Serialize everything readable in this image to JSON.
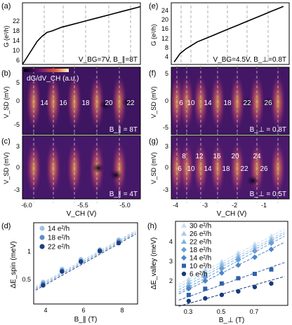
{
  "panels": {
    "a": {
      "letter": "(a)",
      "ylabel": "G (e²/h)",
      "yticks": [
        "22",
        "18",
        "14",
        "10",
        "6"
      ],
      "annotation": "V_BG=7V, B_∥=8T"
    },
    "b": {
      "letter": "(b)",
      "ylabel": "V_SD (mV)",
      "yticks": [
        "5",
        "0",
        "-5"
      ],
      "colorbar_label": "dG/dV_CH (a.u.)",
      "field": "B_∥ = 8T",
      "numbers": [
        "14",
        "16",
        "18",
        "20",
        "22"
      ]
    },
    "c": {
      "letter": "(c)",
      "ylabel": "V_SD (mV)",
      "yticks": [
        "3",
        "0",
        "-3"
      ],
      "field": "B_∥ = 4T",
      "xlabel": "V_CH (V)",
      "xticks": [
        "-6.0",
        "-5.5",
        "-5.0"
      ]
    },
    "e": {
      "letter": "(e)",
      "ylabel": "G (e²/h)",
      "yticks": [
        "24",
        "20",
        "16",
        "12",
        "8",
        "4"
      ],
      "annotation": "V_BG=4.5V, B_⊥=0.8T"
    },
    "f": {
      "letter": "(f)",
      "ylabel": "V_SD (mV)",
      "yticks": [
        "5",
        "0",
        "-5"
      ],
      "field": "B_⊥ = 0.8T",
      "numbers": [
        "6",
        "10",
        "14",
        "18",
        "22",
        "26"
      ]
    },
    "g": {
      "letter": "(g)",
      "ylabel": "V_SD (mV)",
      "yticks": [
        "3",
        "0",
        "-3"
      ],
      "field": "B_⊥ = 0.5T",
      "numbers_top": [
        "8",
        "12",
        "16",
        "20",
        "24"
      ],
      "numbers_bottom": [
        "6",
        "10",
        "14",
        "18",
        "22",
        "26"
      ],
      "xlabel": "V_CH (V)",
      "xticks": [
        "-4",
        "-3",
        "-2",
        "-1"
      ]
    },
    "d": {
      "letter": "(d)",
      "ylabel": "ΔE_spin (meV)",
      "xlabel": "B_∥ (T)",
      "yticks": [
        "1",
        "0.5"
      ],
      "xticks": [
        "4",
        "6",
        "8"
      ],
      "legend": [
        "14 e²/h",
        "18 e²/h",
        "22 e²/h"
      ]
    },
    "h": {
      "letter": "(h)",
      "ylabel": "ΔE_valley (meV)",
      "xlabel": "B_⊥ (T)",
      "yticks": [
        "4",
        "3",
        "2"
      ],
      "xticks": [
        "0.3",
        "0.5",
        "0.7"
      ],
      "legend": [
        "30 e²/h",
        "26 e²/h",
        "22 e²/h",
        "18 e²/h",
        "14 e²/h",
        "10 e²/h",
        "6 e²/h"
      ]
    }
  },
  "chart_data": [
    {
      "type": "scatter",
      "panel": "d",
      "xlabel": "B_∥ (T)",
      "ylabel": "ΔE_spin (meV)",
      "xlim": [
        3.5,
        9
      ],
      "ylim": [
        0.3,
        1.3
      ],
      "series": [
        {
          "name": "14 e²/h",
          "color": "#9ec3e6",
          "x": [
            4,
            5,
            6,
            7,
            8
          ],
          "y": [
            0.57,
            0.73,
            0.85,
            0.97,
            1.09
          ]
        },
        {
          "name": "18 e²/h",
          "color": "#5b8ec9",
          "x": [
            4,
            5,
            6,
            7,
            8
          ],
          "y": [
            0.55,
            0.71,
            0.83,
            0.96,
            1.07
          ]
        },
        {
          "name": "22 e²/h",
          "color": "#1c3f82",
          "x": [
            4,
            5,
            6,
            7,
            8
          ],
          "y": [
            0.53,
            0.7,
            0.82,
            0.95,
            1.05
          ]
        }
      ]
    },
    {
      "type": "scatter",
      "panel": "h",
      "xlabel": "B_⊥ (T)",
      "ylabel": "ΔE_valley (meV)",
      "xlim": [
        0.22,
        0.9
      ],
      "ylim": [
        0.8,
        5.6
      ],
      "series": [
        {
          "name": "30 e²/h",
          "color": "#c9def2",
          "marker": "triangle",
          "x": [
            0.3,
            0.4,
            0.5,
            0.6,
            0.7,
            0.8
          ],
          "y": [
            2.3,
            2.85,
            3.3,
            3.8,
            4.3,
            4.75
          ]
        },
        {
          "name": "26 e²/h",
          "color": "#a6c8ea",
          "marker": "triangle",
          "x": [
            0.3,
            0.4,
            0.5,
            0.6,
            0.7,
            0.8
          ],
          "y": [
            2.15,
            2.7,
            3.2,
            3.65,
            4.15,
            4.6
          ]
        },
        {
          "name": "22 e²/h",
          "color": "#84b3e0",
          "marker": "triangle",
          "x": [
            0.3,
            0.4,
            0.5,
            0.6,
            0.7,
            0.8
          ],
          "y": [
            2.0,
            2.55,
            3.05,
            3.55,
            4.0,
            4.5
          ]
        },
        {
          "name": "18 e²/h",
          "color": "#6b9fd6",
          "marker": "diamond",
          "x": [
            0.3,
            0.4,
            0.5,
            0.6,
            0.7,
            0.8
          ],
          "y": [
            1.85,
            2.4,
            2.9,
            3.4,
            3.9,
            4.35
          ]
        },
        {
          "name": "14 e²/h",
          "color": "#4f86c6",
          "marker": "diamond",
          "x": [
            0.3,
            0.4,
            0.5,
            0.6,
            0.7,
            0.8
          ],
          "y": [
            1.75,
            2.2,
            2.65,
            3.1,
            3.55,
            4.0
          ]
        },
        {
          "name": "10 e²/h",
          "color": "#2f62a8",
          "marker": "square",
          "x": [
            0.3,
            0.4,
            0.5,
            0.6,
            0.7,
            0.8
          ],
          "y": [
            1.4,
            1.75,
            2.05,
            2.35,
            2.6,
            2.85
          ]
        },
        {
          "name": "6 e²/h",
          "color": "#173a7a",
          "marker": "circle",
          "x": [
            0.3,
            0.4,
            0.5,
            0.6,
            0.7,
            0.8
          ],
          "y": [
            1.05,
            1.2,
            1.4,
            1.6,
            1.85,
            2.05
          ]
        }
      ]
    },
    {
      "type": "line",
      "panel": "a",
      "xlabel": "V_CH (V)",
      "ylabel": "G (e²/h)",
      "xlim": [
        -6.0,
        -4.8
      ],
      "ylim": [
        2,
        26
      ],
      "x": [
        -6.0,
        -5.95,
        -5.9,
        -5.85,
        -5.8,
        -5.75,
        -5.7,
        -5.6,
        -5.5,
        -5.4,
        -5.3,
        -5.2,
        -5.1,
        -5.0,
        -4.9,
        -4.8
      ],
      "y": [
        2,
        5,
        8,
        11,
        13,
        14.5,
        15,
        16.5,
        17.5,
        18.5,
        19.5,
        20.5,
        21.5,
        22.5,
        23.5,
        24.5
      ]
    },
    {
      "type": "line",
      "panel": "e",
      "xlabel": "V_CH (V)",
      "ylabel": "G (e²/h)",
      "xlim": [
        -4.1,
        0
      ],
      "ylim": [
        2,
        28
      ],
      "x": [
        -4.0,
        -3.8,
        -3.6,
        -3.4,
        -3.2,
        -3.0,
        -2.8,
        -2.6,
        -2.4,
        -2.2,
        -2.0,
        -1.8,
        -1.6,
        -1.4,
        -1.2,
        -1.0,
        -0.8,
        -0.6,
        -0.4,
        -0.2
      ],
      "y": [
        3,
        6.5,
        8.5,
        10,
        11.5,
        12.5,
        13.5,
        14.5,
        15.5,
        16.5,
        17.5,
        18.5,
        19.5,
        20.5,
        21.5,
        22.5,
        23.5,
        24.5,
        25.5,
        26.5
      ]
    }
  ]
}
